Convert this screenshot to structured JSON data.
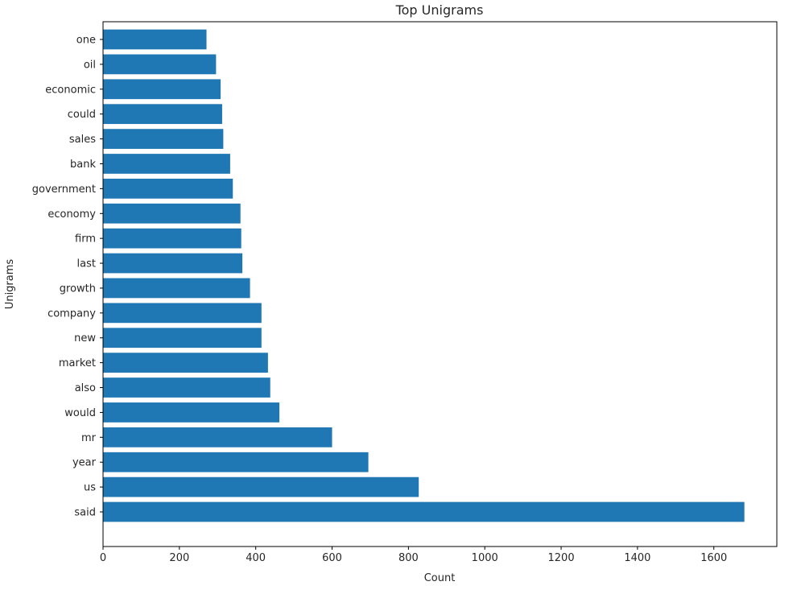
{
  "chart_data": {
    "type": "bar",
    "orientation": "horizontal",
    "title": "Top Unigrams",
    "xlabel": "Count",
    "ylabel": "Unigrams",
    "categories": [
      "said",
      "us",
      "year",
      "mr",
      "would",
      "also",
      "market",
      "new",
      "company",
      "growth",
      "last",
      "firm",
      "economy",
      "government",
      "bank",
      "sales",
      "could",
      "economic",
      "oil",
      "one"
    ],
    "values": [
      1680,
      827,
      695,
      600,
      462,
      438,
      432,
      415,
      415,
      385,
      365,
      362,
      360,
      340,
      333,
      315,
      312,
      308,
      296,
      271
    ],
    "xlim": [
      0,
      1765
    ],
    "xticks": [
      0,
      200,
      400,
      600,
      800,
      1000,
      1200,
      1400,
      1600
    ],
    "bar_color": "#1f77b4",
    "grid": false,
    "legend": "none"
  }
}
